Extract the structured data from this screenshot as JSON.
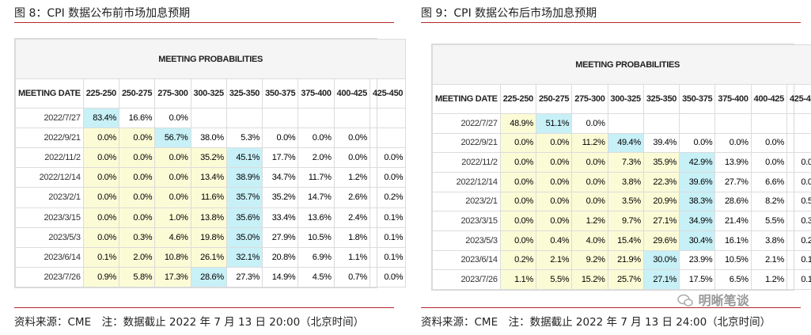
{
  "figures": [
    {
      "title": "图 8：CPI 数据公布前市场加息预期",
      "table": {
        "header": "MEETING PROBABILITIES",
        "columns": [
          "MEETING DATE",
          "225-250",
          "250-275",
          "275-300",
          "300-325",
          "325-350",
          "350-375",
          "375-400",
          "400-425",
          "425-450"
        ],
        "rows": [
          [
            "2022/7/27",
            "83.4%",
            "16.6%",
            "0.0%"
          ],
          [
            "2022/9/21",
            "0.0%",
            "0.0%",
            "56.7%",
            "38.0%",
            "5.3%",
            "0.0%",
            "0.0%",
            "0.0%"
          ],
          [
            "2022/11/2",
            "0.0%",
            "0.0%",
            "0.0%",
            "35.2%",
            "45.1%",
            "17.7%",
            "2.0%",
            "0.0%",
            "0.0%"
          ],
          [
            "2022/12/14",
            "0.0%",
            "0.0%",
            "0.0%",
            "13.4%",
            "38.9%",
            "34.7%",
            "11.7%",
            "1.2%",
            "0.0%"
          ],
          [
            "2023/2/1",
            "0.0%",
            "0.0%",
            "0.0%",
            "11.6%",
            "35.7%",
            "35.2%",
            "14.7%",
            "2.6%",
            "0.2%"
          ],
          [
            "2023/3/15",
            "0.0%",
            "0.0%",
            "1.0%",
            "13.8%",
            "35.6%",
            "33.4%",
            "13.6%",
            "2.4%",
            "0.1%"
          ],
          [
            "2023/5/3",
            "0.0%",
            "0.3%",
            "4.6%",
            "19.8%",
            "35.0%",
            "27.9%",
            "10.5%",
            "1.8%",
            "0.1%"
          ],
          [
            "2023/6/14",
            "0.1%",
            "2.0%",
            "10.8%",
            "26.1%",
            "32.1%",
            "20.8%",
            "6.9%",
            "1.1%",
            "0.1%"
          ],
          [
            "2023/7/26",
            "0.9%",
            "5.8%",
            "17.3%",
            "28.6%",
            "27.3%",
            "14.9%",
            "4.5%",
            "0.7%",
            "0.0%"
          ]
        ]
      },
      "source": "资料来源：CME　注：数据截止 2022 年 7 月 13 日 20:00（北京时间）"
    },
    {
      "title": "图 9：CPI 数据公布后市场加息预期",
      "table": {
        "header": "MEETING PROBABILITIES",
        "columns": [
          "MEETING DATE",
          "225-250",
          "250-275",
          "275-300",
          "300-325",
          "325-350",
          "350-375",
          "375-400",
          "400-425",
          "425-450"
        ],
        "rows": [
          [
            "2022/7/27",
            "48.9%",
            "51.1%",
            "0.0%"
          ],
          [
            "2022/9/21",
            "0.0%",
            "0.0%",
            "11.2%",
            "49.4%",
            "39.4%",
            "0.0%",
            "0.0%",
            "0.0%"
          ],
          [
            "2022/11/2",
            "0.0%",
            "0.0%",
            "0.0%",
            "7.3%",
            "35.9%",
            "42.9%",
            "13.9%",
            "0.0%",
            "0.0%"
          ],
          [
            "2022/12/14",
            "0.0%",
            "0.0%",
            "0.0%",
            "3.8%",
            "22.3%",
            "39.6%",
            "27.7%",
            "6.6%",
            "0.0%"
          ],
          [
            "2023/2/1",
            "0.0%",
            "0.0%",
            "0.0%",
            "3.5%",
            "20.9%",
            "38.3%",
            "28.6%",
            "8.2%",
            "0.5%"
          ],
          [
            "2023/3/15",
            "0.0%",
            "0.0%",
            "1.2%",
            "9.7%",
            "27.1%",
            "34.9%",
            "21.4%",
            "5.5%",
            "0.3%"
          ],
          [
            "2023/5/3",
            "0.0%",
            "0.4%",
            "4.0%",
            "15.4%",
            "29.6%",
            "30.4%",
            "16.1%",
            "3.8%",
            "0.2%"
          ],
          [
            "2023/6/14",
            "0.2%",
            "2.1%",
            "9.2%",
            "21.9%",
            "30.0%",
            "23.9%",
            "10.5%",
            "2.1%",
            "0.1%"
          ],
          [
            "2023/7/26",
            "1.1%",
            "5.5%",
            "15.2%",
            "25.7%",
            "27.1%",
            "17.5%",
            "6.5%",
            "1.2%",
            "0.1%"
          ]
        ]
      },
      "source": "资料来源：CME　注：数据截止 2022 年 7 月 13 日 24:00（北京时间）"
    }
  ],
  "watermark": "明晰笔谈"
}
